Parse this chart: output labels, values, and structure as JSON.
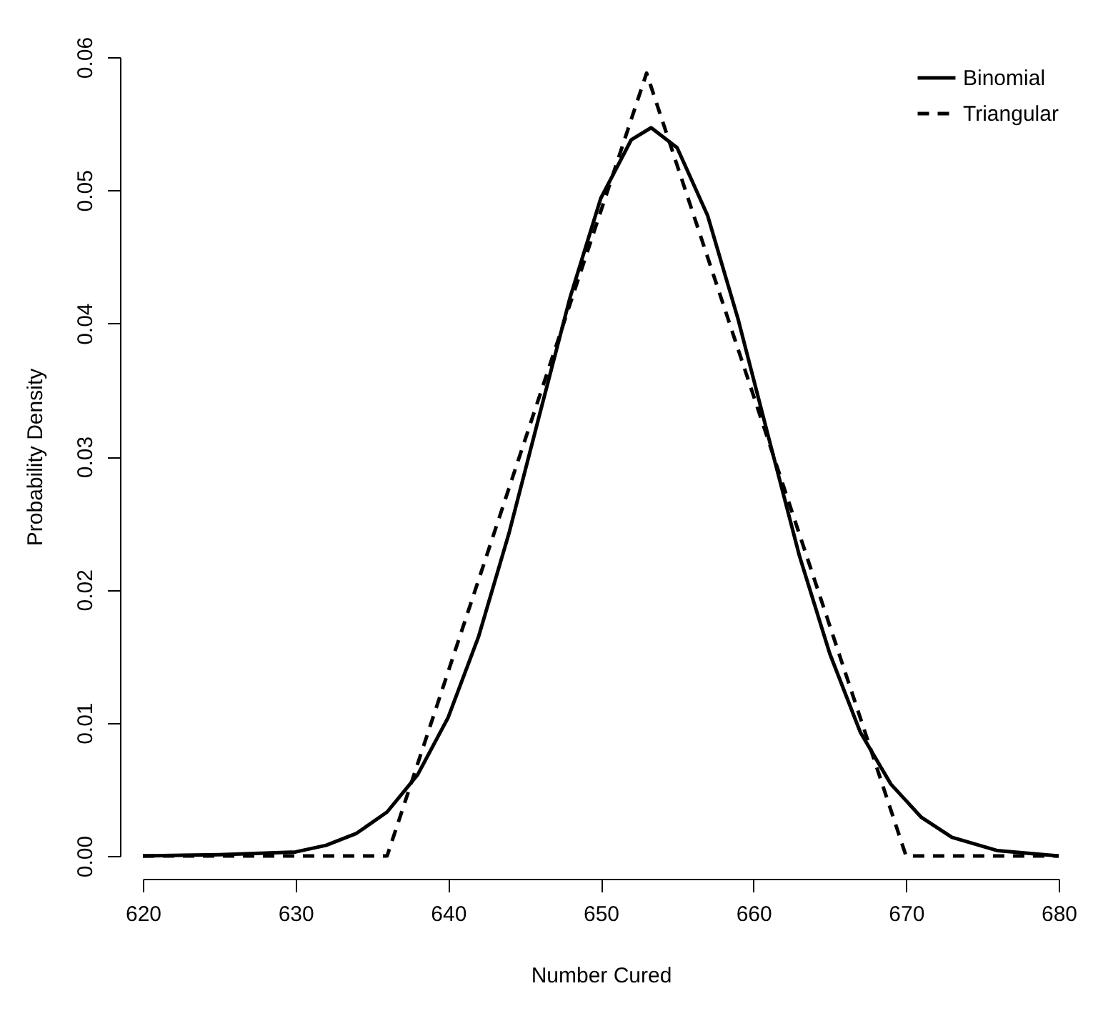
{
  "chart_data": {
    "type": "line",
    "xlabel": "Number Cured",
    "ylabel": "Probability Density",
    "xlim": [
      620,
      680
    ],
    "xticks": [
      620,
      630,
      640,
      650,
      660,
      670,
      680
    ],
    "ylim": [
      0,
      0.06
    ],
    "yticks": [
      {
        "value": 0,
        "label": "0.00"
      },
      {
        "value": 0.01,
        "label": "0.01"
      },
      {
        "value": 0.02,
        "label": "0.02"
      },
      {
        "value": 0.03,
        "label": "0.03"
      },
      {
        "value": 0.04,
        "label": "0.04"
      },
      {
        "value": 0.05,
        "label": "0.05"
      },
      {
        "value": 0.06,
        "label": "0.06"
      }
    ],
    "legend": "top right",
    "grid": false,
    "series": [
      {
        "name": "Binomial",
        "color": "#000000",
        "line_style": "solid",
        "x": [
          620,
          625,
          630,
          632,
          634,
          636,
          638,
          640,
          642,
          644,
          646,
          648,
          650,
          652,
          653.3,
          655,
          657,
          659,
          661,
          663,
          665,
          667,
          669,
          671,
          673,
          676,
          680
        ],
        "values": [
          0,
          0.0001,
          0.0003,
          0.0008,
          0.0017,
          0.0033,
          0.0061,
          0.0104,
          0.0165,
          0.0243,
          0.0332,
          0.042,
          0.0494,
          0.0538,
          0.0547,
          0.0532,
          0.0481,
          0.0403,
          0.0314,
          0.0226,
          0.0152,
          0.0093,
          0.0054,
          0.0029,
          0.0014,
          0.0004,
          0
        ]
      },
      {
        "name": "Triangular",
        "color": "#000000",
        "line_style": "dashed",
        "x": [
          620,
          636,
          653,
          670,
          680
        ],
        "values": [
          0,
          0,
          0.0588,
          0,
          0
        ]
      }
    ]
  }
}
